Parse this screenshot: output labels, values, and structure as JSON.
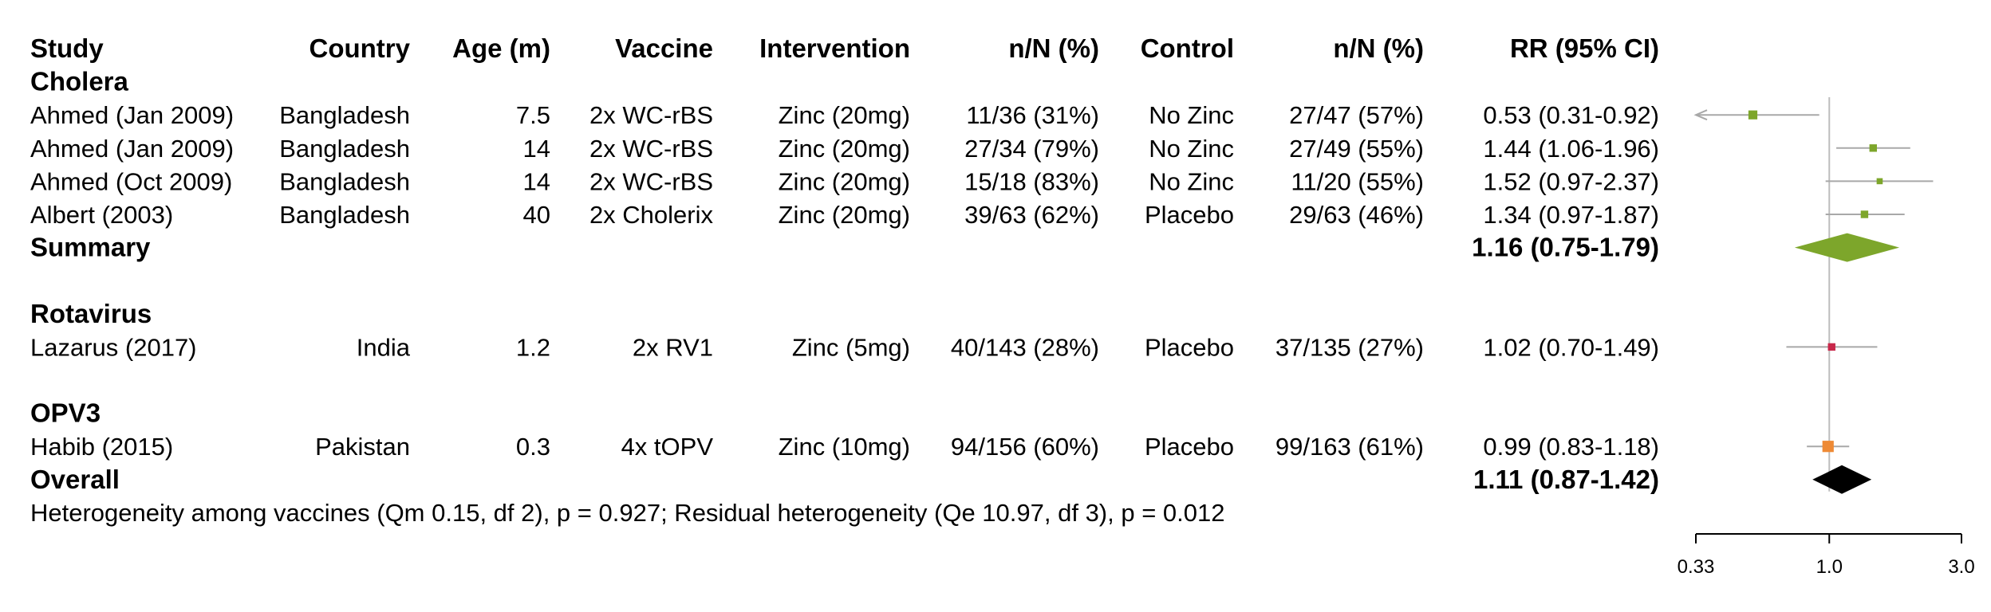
{
  "headers": {
    "study": "Study",
    "country": "Country",
    "age": "Age (m)",
    "vaccine": "Vaccine",
    "intervention": "Intervention",
    "int_n": "n/N (%)",
    "control": "Control",
    "ctl_n": "n/N (%)",
    "rr": "RR (95% CI)"
  },
  "groups": [
    {
      "label": "Cholera",
      "color": "#7da62b",
      "studies": [
        {
          "study": "Ahmed (Jan 2009)",
          "country": "Bangladesh",
          "age": "7.5",
          "vaccine": "2x WC-rBS",
          "intervention": "Zinc (20mg)",
          "int_n": "11/36 (31%)",
          "control": "No Zinc",
          "ctl_n": "27/47 (57%)",
          "rr_text": "0.53 (0.31-0.92)"
        },
        {
          "study": "Ahmed (Jan 2009)",
          "country": "Bangladesh",
          "age": "14",
          "vaccine": "2x WC-rBS",
          "intervention": "Zinc (20mg)",
          "int_n": "27/34 (79%)",
          "control": "No Zinc",
          "ctl_n": "27/49 (55%)",
          "rr_text": "1.44 (1.06-1.96)"
        },
        {
          "study": "Ahmed (Oct 2009)",
          "country": "Bangladesh",
          "age": "14",
          "vaccine": "2x WC-rBS",
          "intervention": "Zinc (20mg)",
          "int_n": "15/18 (83%)",
          "control": "No Zinc",
          "ctl_n": "11/20 (55%)",
          "rr_text": "1.52 (0.97-2.37)"
        },
        {
          "study": "Albert (2003)",
          "country": "Bangladesh",
          "age": "40",
          "vaccine": "2x Cholerix",
          "intervention": "Zinc (20mg)",
          "int_n": "39/63 (62%)",
          "control": "Placebo",
          "ctl_n": "29/63 (46%)",
          "rr_text": "1.34 (0.97-1.87)"
        }
      ],
      "summary": {
        "label": "Summary",
        "rr_text": "1.16 (0.75-1.79)"
      }
    },
    {
      "label": "Rotavirus",
      "color": "#c8284a",
      "studies": [
        {
          "study": "Lazarus (2017)",
          "country": "India",
          "age": "1.2",
          "vaccine": "2x RV1",
          "intervention": "Zinc (5mg)",
          "int_n": "40/143 (28%)",
          "control": "Placebo",
          "ctl_n": "37/135 (27%)",
          "rr_text": "1.02 (0.70-1.49)"
        }
      ]
    },
    {
      "label": "OPV3",
      "color": "#ee8a35",
      "studies": [
        {
          "study": "Habib (2015)",
          "country": "Pakistan",
          "age": "0.3",
          "vaccine": "4x tOPV",
          "intervention": "Zinc (10mg)",
          "int_n": "94/156 (60%)",
          "control": "Placebo",
          "ctl_n": "99/163 (61%)",
          "rr_text": "0.99 (0.83-1.18)"
        }
      ]
    }
  ],
  "overall": {
    "label": "Overall",
    "rr_text": "1.11 (0.87-1.42)"
  },
  "heterogeneity": "Heterogeneity among vaccines (Qm 0.15, df 2), p = 0.927; Residual heterogeneity (Qe 10.97, df 3), p = 0.012",
  "chart_data": {
    "type": "forest",
    "x_scale": "log",
    "xlim": [
      0.33,
      3.0
    ],
    "ticks": [
      "0.33",
      "1.0",
      "3.0"
    ],
    "tick_values": [
      0.33,
      1.0,
      3.0
    ],
    "reference_line": 1.0,
    "series": [
      {
        "group": "Cholera",
        "color": "#7da62b",
        "points": [
          {
            "rr": 0.53,
            "lo": 0.31,
            "hi": 0.92,
            "weight": 0.6
          },
          {
            "rr": 1.44,
            "lo": 1.06,
            "hi": 1.96,
            "weight": 0.45
          },
          {
            "rr": 1.52,
            "lo": 0.97,
            "hi": 2.37,
            "weight": 0.3
          },
          {
            "rr": 1.34,
            "lo": 0.97,
            "hi": 1.87,
            "weight": 0.45
          }
        ],
        "summary": {
          "rr": 1.16,
          "lo": 0.75,
          "hi": 1.79
        }
      },
      {
        "group": "Rotavirus",
        "color": "#c8284a",
        "points": [
          {
            "rr": 1.02,
            "lo": 0.7,
            "hi": 1.49,
            "weight": 0.45
          }
        ]
      },
      {
        "group": "OPV3",
        "color": "#ee8a35",
        "points": [
          {
            "rr": 0.99,
            "lo": 0.83,
            "hi": 1.18,
            "weight": 0.85
          }
        ]
      }
    ],
    "overall": {
      "rr": 1.11,
      "lo": 0.87,
      "hi": 1.42,
      "color": "#000000"
    }
  }
}
